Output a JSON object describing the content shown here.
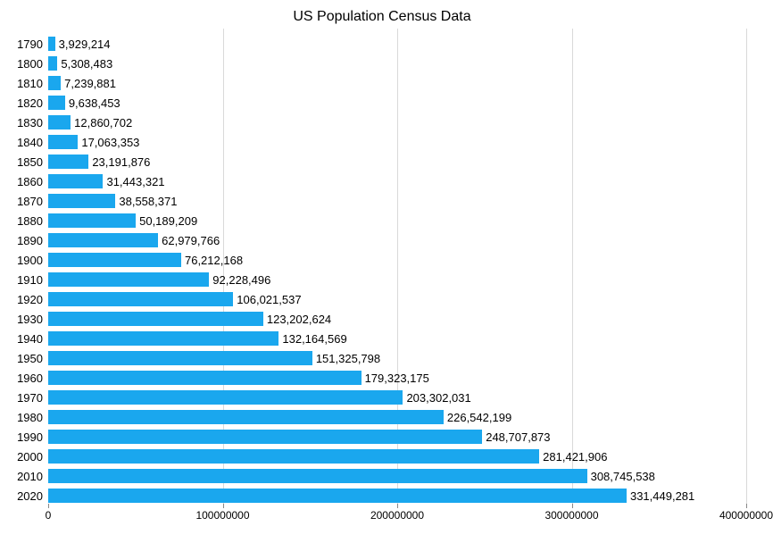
{
  "chart": {
    "type": "bar-horizontal",
    "title": "US Population Census Data",
    "title_fontsize": 16,
    "background_color": "#ffffff",
    "bar_color": "#1aa7ee",
    "grid_color": "#d9d9d9",
    "label_color": "#000000",
    "axis_fontsize": 12,
    "value_fontsize": 13,
    "xlim": [
      0,
      400000000
    ],
    "xtick_step": 100000000,
    "xticks": [
      {
        "v": 0,
        "label": "0"
      },
      {
        "v": 100000000,
        "label": "100000000"
      },
      {
        "v": 200000000,
        "label": "200000000"
      },
      {
        "v": 300000000,
        "label": "300000000"
      },
      {
        "v": 400000000,
        "label": "400000000"
      }
    ],
    "rows": [
      {
        "year": "1790",
        "value": 3929214,
        "label": "3,929,214"
      },
      {
        "year": "1800",
        "value": 5308483,
        "label": "5,308,483"
      },
      {
        "year": "1810",
        "value": 7239881,
        "label": "7,239,881"
      },
      {
        "year": "1820",
        "value": 9638453,
        "label": "9,638,453"
      },
      {
        "year": "1830",
        "value": 12860702,
        "label": "12,860,702"
      },
      {
        "year": "1840",
        "value": 17063353,
        "label": "17,063,353"
      },
      {
        "year": "1850",
        "value": 23191876,
        "label": "23,191,876"
      },
      {
        "year": "1860",
        "value": 31443321,
        "label": "31,443,321"
      },
      {
        "year": "1870",
        "value": 38558371,
        "label": "38,558,371"
      },
      {
        "year": "1880",
        "value": 50189209,
        "label": "50,189,209"
      },
      {
        "year": "1890",
        "value": 62979766,
        "label": "62,979,766"
      },
      {
        "year": "1900",
        "value": 76212168,
        "label": "76,212,168"
      },
      {
        "year": "1910",
        "value": 92228496,
        "label": "92,228,496"
      },
      {
        "year": "1920",
        "value": 106021537,
        "label": "106,021,537"
      },
      {
        "year": "1930",
        "value": 123202624,
        "label": "123,202,624"
      },
      {
        "year": "1940",
        "value": 132164569,
        "label": "132,164,569"
      },
      {
        "year": "1950",
        "value": 151325798,
        "label": "151,325,798"
      },
      {
        "year": "1960",
        "value": 179323175,
        "label": "179,323,175"
      },
      {
        "year": "1970",
        "value": 203302031,
        "label": "203,302,031"
      },
      {
        "year": "1980",
        "value": 226542199,
        "label": "226,542,199"
      },
      {
        "year": "1990",
        "value": 248707873,
        "label": "248,707,873"
      },
      {
        "year": "2000",
        "value": 281421906,
        "label": "281,421,906"
      },
      {
        "year": "2010",
        "value": 308745538,
        "label": "308,745,538"
      },
      {
        "year": "2020",
        "value": 331449281,
        "label": "331,449,281"
      }
    ]
  }
}
